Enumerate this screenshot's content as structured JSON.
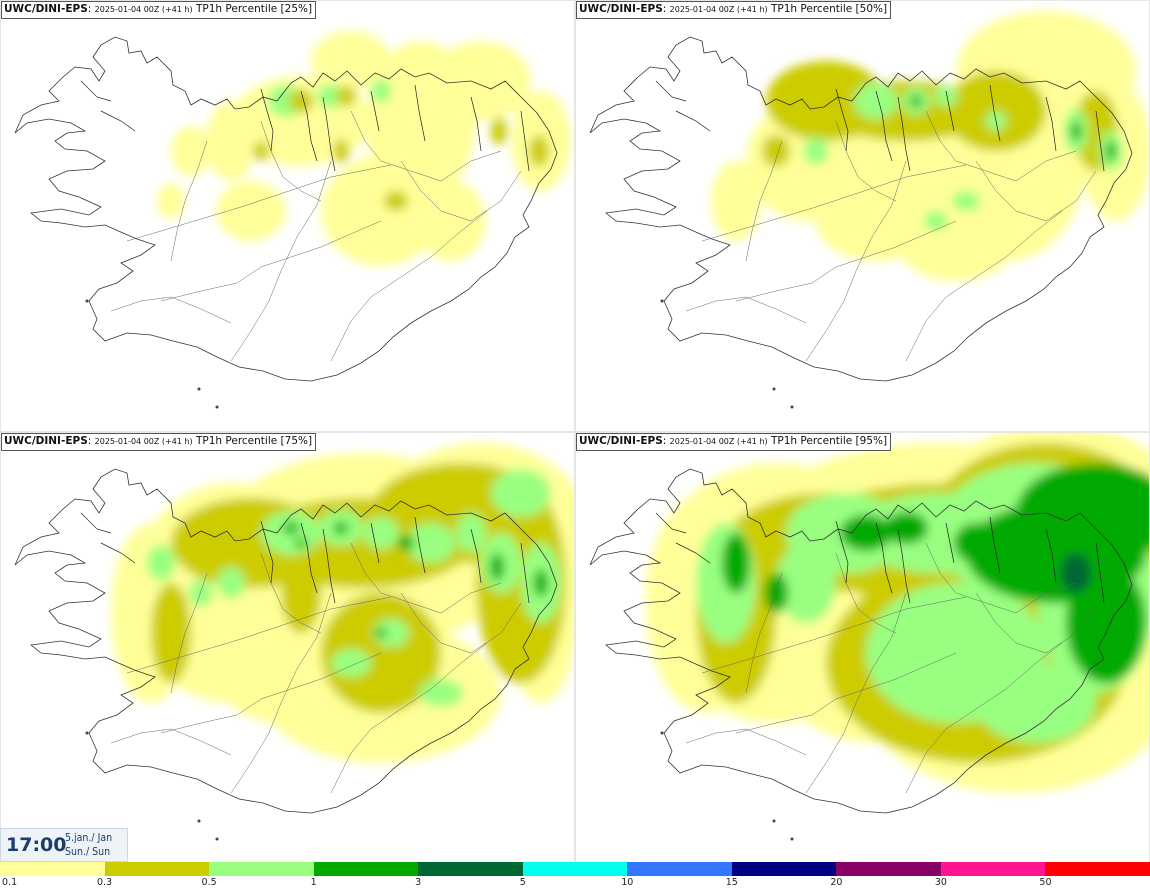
{
  "panels": [
    {
      "source": "UWC/DINI-EPS",
      "run": "2025-01-04 00Z (+41 h)",
      "field": "TP1h Percentile [25%]",
      "percentile": 25
    },
    {
      "source": "UWC/DINI-EPS",
      "run": "2025-01-04 00Z (+41 h)",
      "field": "TP1h Percentile [50%]",
      "percentile": 50
    },
    {
      "source": "UWC/DINI-EPS",
      "run": "2025-01-04 00Z (+41 h)",
      "field": "TP1h Percentile [75%]",
      "percentile": 75
    },
    {
      "source": "UWC/DINI-EPS",
      "run": "2025-01-04 00Z (+41 h)",
      "field": "TP1h Percentile [95%]",
      "percentile": 95
    }
  ],
  "valid_time": {
    "time": "17:00",
    "date_line1": "5.jan./ Jan",
    "date_line2": "Sun./ Sun"
  },
  "legend": {
    "labels": [
      "0.1",
      "0.3",
      "0.5",
      "1",
      "3",
      "5",
      "10",
      "15",
      "20",
      "30",
      "50"
    ],
    "colors": [
      "#ffff99",
      "#cccc00",
      "#99ff80",
      "#00aa00",
      "#006633",
      "#00ffee",
      "#3377ff",
      "#000080",
      "#880066",
      "#ff1493",
      "#ff0000"
    ]
  }
}
